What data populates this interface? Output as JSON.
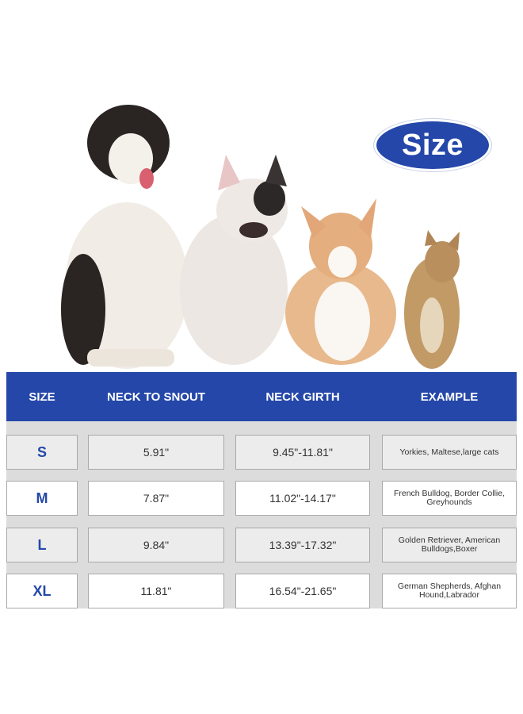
{
  "badge": {
    "label": "Size"
  },
  "colors": {
    "brand_blue": "#2447a9",
    "row_gray": "#ececec",
    "grid_bg": "#dcdcdc"
  },
  "images": [
    "australian-shepherd-dog",
    "french-bulldog",
    "corgi-dog",
    "tabby-cat"
  ],
  "table": {
    "headers": [
      "SIZE",
      "NECK TO SNOUT",
      "NECK GIRTH",
      "EXAMPLE"
    ],
    "rows": [
      {
        "size": "S",
        "neck_to_snout": "5.91\"",
        "neck_girth": "9.45\"-11.81\"",
        "example": "Yorkies, Maltese,large cats"
      },
      {
        "size": "M",
        "neck_to_snout": "7.87\"",
        "neck_girth": "11.02\"-14.17\"",
        "example": "French Bulldog, Border Collie, Greyhounds"
      },
      {
        "size": "L",
        "neck_to_snout": "9.84\"",
        "neck_girth": "13.39\"-17.32\"",
        "example": "Golden Retriever, American Bulldogs,Boxer"
      },
      {
        "size": "XL",
        "neck_to_snout": "11.81\"",
        "neck_girth": "16.54\"-21.65\"",
        "example": "German Shepherds, Afghan Hound,Labrador"
      }
    ]
  }
}
